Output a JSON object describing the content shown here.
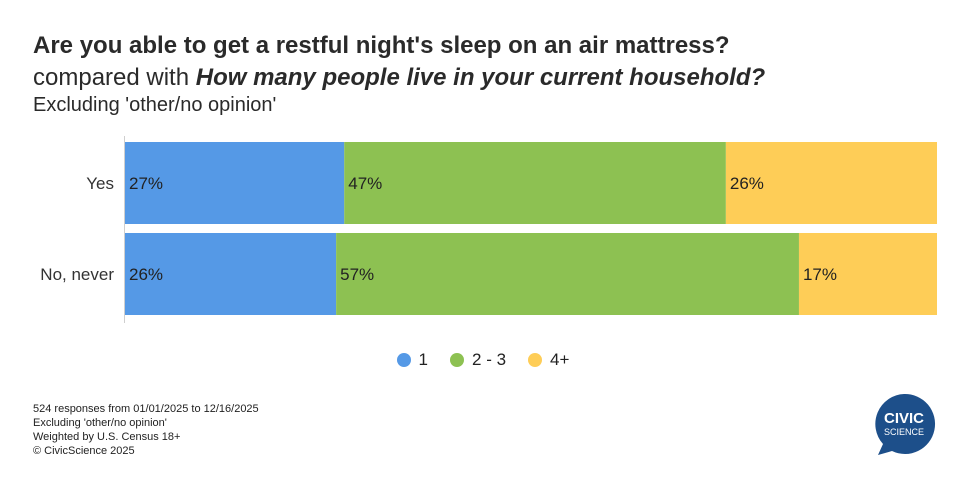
{
  "title": "Are you able to get a restful night's sleep on an air mattress?",
  "subtitle_prefix": "compared with ",
  "subtitle_emph": "How many people live in your current household?",
  "note": "Excluding 'other/no opinion'",
  "chart_data": {
    "type": "bar",
    "orientation": "horizontal",
    "stacked": true,
    "percent": true,
    "categories": [
      "Yes",
      "No, never"
    ],
    "series": [
      {
        "name": "1",
        "color": "#5599e6",
        "values": [
          27,
          26
        ]
      },
      {
        "name": "2 - 3",
        "color": "#8dc152",
        "values": [
          47,
          57
        ]
      },
      {
        "name": "4+",
        "color": "#fecd57",
        "values": [
          26,
          17
        ]
      }
    ],
    "xlim": [
      0,
      100
    ],
    "legend": "bottom-center"
  },
  "footer": {
    "lines": [
      "524 responses from 01/01/2025 to 12/16/2025",
      "Excluding 'other/no opinion'",
      "Weighted by U.S. Census 18+",
      "© CivicScience 2025"
    ]
  },
  "logo": {
    "line1": "CIVIC",
    "line2": "SCIENCE",
    "color": "#1d4f8a"
  }
}
